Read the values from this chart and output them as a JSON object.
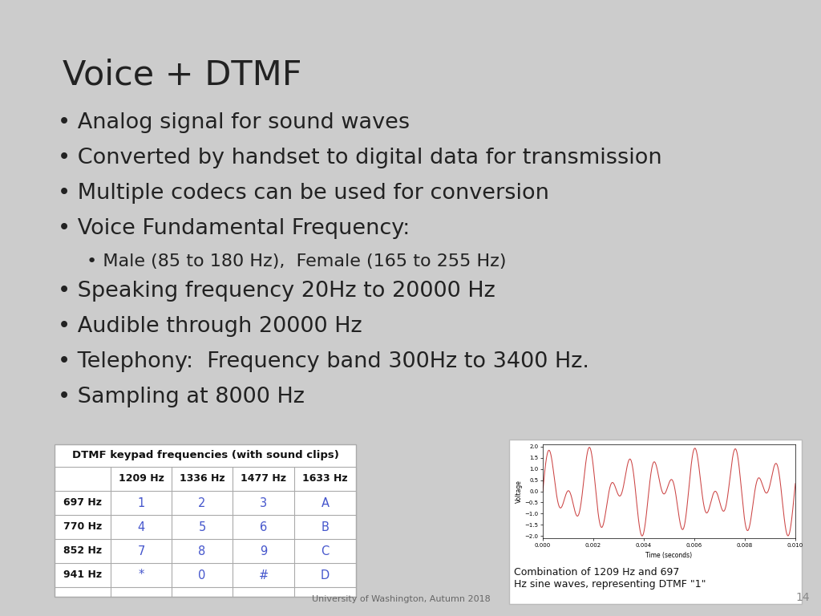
{
  "title": "Voice + DTMF",
  "background_color": "#cccccc",
  "title_color": "#222222",
  "title_fontsize": 31,
  "bullet_fontsize": 19.5,
  "sub_bullet_fontsize": 16,
  "bullets": [
    "Analog signal for sound waves",
    "Converted by handset to digital data for transmission",
    "Multiple codecs can be used for conversion",
    "Voice Fundamental Frequency:",
    "Speaking frequency 20Hz to 20000 Hz",
    "Audible through 20000 Hz",
    "Telephony:  Frequency band 300Hz to 3400 Hz.",
    "Sampling at 8000 Hz"
  ],
  "sub_bullet": "Male (85 to 180 Hz),  Female (165 to 255 Hz)",
  "sub_bullet_index": 3,
  "table_title": "DTMF keypad frequencies (with sound clips)",
  "table_col_headers": [
    "",
    "1209 Hz",
    "1336 Hz",
    "1477 Hz",
    "1633 Hz"
  ],
  "table_row_headers": [
    "697 Hz",
    "770 Hz",
    "852 Hz",
    "941 Hz"
  ],
  "table_data": [
    [
      "1",
      "2",
      "3",
      "A"
    ],
    [
      "4",
      "5",
      "6",
      "B"
    ],
    [
      "7",
      "8",
      "9",
      "C"
    ],
    [
      "*",
      "0",
      "#",
      "D"
    ]
  ],
  "table_data_color": "#4455cc",
  "wave_caption": "Combination of 1209 Hz and 697\nHz sine waves, representing DTMF \"1\"",
  "wave_color": "#cc4444",
  "wave_freq1": 1209,
  "wave_freq2": 697,
  "footer_text": "University of Washington, Autumn 2018",
  "page_number": "14"
}
